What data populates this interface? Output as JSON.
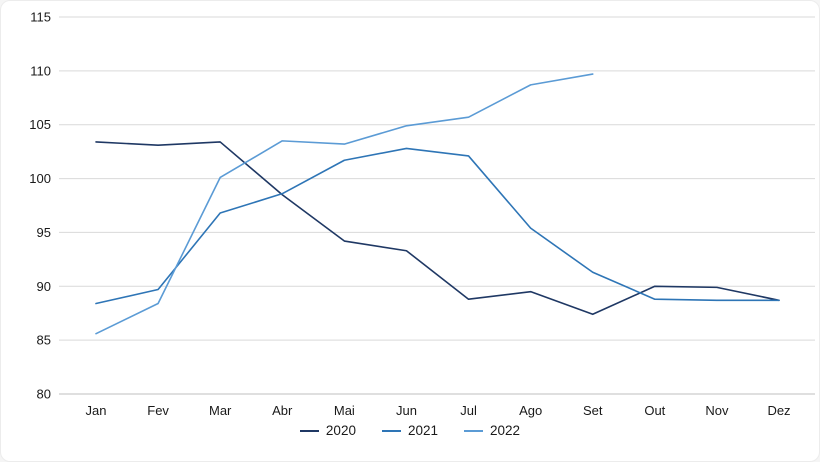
{
  "chart_data": {
    "type": "line",
    "title": "",
    "xlabel": "",
    "ylabel": "",
    "categories": [
      "Jan",
      "Fev",
      "Mar",
      "Abr",
      "Mai",
      "Jun",
      "Jul",
      "Ago",
      "Set",
      "Out",
      "Nov",
      "Dez"
    ],
    "series": [
      {
        "name": "2020",
        "color": "#1F3864",
        "values": [
          103.4,
          103.1,
          103.4,
          98.5,
          94.2,
          93.3,
          88.8,
          89.5,
          87.4,
          90.0,
          89.9,
          88.7
        ]
      },
      {
        "name": "2021",
        "color": "#2E75B6",
        "values": [
          88.4,
          89.7,
          96.8,
          98.6,
          101.7,
          102.8,
          102.1,
          95.4,
          91.3,
          88.8,
          88.7,
          88.7
        ]
      },
      {
        "name": "2022",
        "color": "#5B9BD5",
        "values": [
          85.6,
          88.4,
          100.1,
          103.5,
          103.2,
          104.9,
          105.7,
          108.7,
          109.7
        ]
      }
    ],
    "ylim": [
      80,
      115
    ],
    "ytick_step": 5,
    "grid": true,
    "legend_position": "bottom",
    "grid_color": "#D9D9D9",
    "axis_line_color": "#BFBFBF",
    "label_color": "#1A1A1A"
  }
}
